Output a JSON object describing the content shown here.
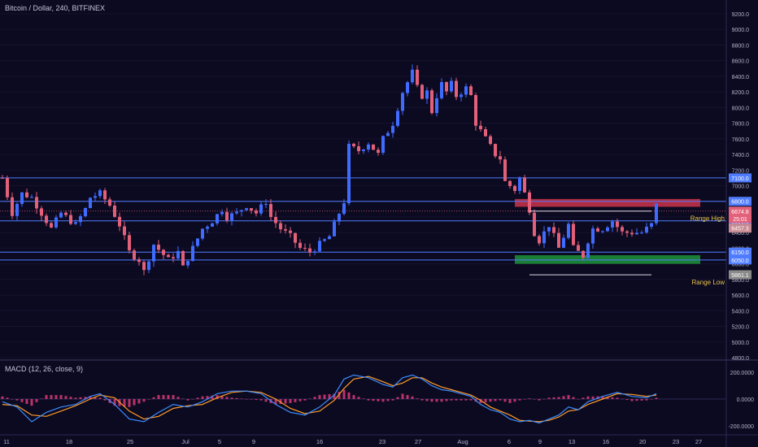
{
  "header": {
    "symbol_title": "Bitcoin / Dollar, 240, BITFINEX",
    "macd_title": "MACD (12, 26, close, 9)"
  },
  "colors": {
    "background": "#0c0a20",
    "bull": "#3f6bff",
    "bear": "#e2607a",
    "level_line": "#4f7cff",
    "supply_zone": "#e53950",
    "demand_zone": "#1fa53b",
    "annotation": "#e8c24a",
    "macd_line": "#3c8cff",
    "signal_line": "#ff9c2a",
    "histogram": "#d83a78"
  },
  "chart_data": [
    {
      "type": "candlestick",
      "ylim": [
        4800,
        9200
      ],
      "y_ticks": [
        "9200.0",
        "9000.0",
        "8800.0",
        "8600.0",
        "8400.0",
        "8200.0",
        "8000.0",
        "7800.0",
        "7600.0",
        "7400.0",
        "7200.0",
        "7000.0",
        "6800.0",
        "6600.0",
        "6400.0",
        "6200.0",
        "6000.0",
        "5800.0",
        "5600.0",
        "5400.0",
        "5200.0",
        "5000.0",
        "4800.0"
      ],
      "x_ticks": [
        "11",
        "18",
        "25",
        "Jul",
        "5",
        "9",
        "16",
        "23",
        "27",
        "Aug",
        "6",
        "9",
        "13",
        "16",
        "20",
        "23",
        "27"
      ],
      "close_path": [
        [
          0,
          7100
        ],
        [
          2,
          6650
        ],
        [
          4,
          6900
        ],
        [
          6,
          6850
        ],
        [
          8,
          6650
        ],
        [
          10,
          6450
        ],
        [
          12,
          6650
        ],
        [
          15,
          6500
        ],
        [
          17,
          6700
        ],
        [
          18,
          6850
        ],
        [
          20,
          6900
        ],
        [
          22,
          6750
        ],
        [
          24,
          6500
        ],
        [
          26,
          6150
        ],
        [
          28,
          6050
        ],
        [
          29,
          5900
        ],
        [
          31,
          6250
        ],
        [
          34,
          6050
        ],
        [
          36,
          6150
        ],
        [
          37,
          5950
        ],
        [
          39,
          6200
        ],
        [
          41,
          6450
        ],
        [
          43,
          6550
        ],
        [
          45,
          6700
        ],
        [
          46,
          6600
        ],
        [
          48,
          6650
        ],
        [
          50,
          6750
        ],
        [
          52,
          6650
        ],
        [
          54,
          6800
        ],
        [
          55,
          6600
        ],
        [
          57,
          6450
        ],
        [
          59,
          6350
        ],
        [
          61,
          6200
        ],
        [
          63,
          6150
        ],
        [
          65,
          6250
        ],
        [
          67,
          6350
        ],
        [
          68,
          6500
        ],
        [
          70,
          6800
        ],
        [
          71,
          7500
        ],
        [
          73,
          7450
        ],
        [
          75,
          7550
        ],
        [
          77,
          7400
        ],
        [
          78,
          7600
        ],
        [
          80,
          7800
        ],
        [
          82,
          8200
        ],
        [
          84,
          8450
        ],
        [
          85,
          8250
        ],
        [
          86,
          8150
        ],
        [
          87,
          8200
        ],
        [
          88,
          7950
        ],
        [
          89,
          8150
        ],
        [
          90,
          8300
        ],
        [
          91,
          8200
        ],
        [
          92,
          8300
        ],
        [
          93,
          8150
        ],
        [
          94,
          8200
        ],
        [
          95,
          8250
        ],
        [
          96,
          8150
        ],
        [
          97,
          7800
        ],
        [
          99,
          7600
        ],
        [
          101,
          7400
        ],
        [
          102,
          7350
        ],
        [
          103,
          7050
        ],
        [
          105,
          6950
        ],
        [
          106,
          7100
        ],
        [
          108,
          6700
        ],
        [
          109,
          6400
        ],
        [
          110,
          6300
        ],
        [
          112,
          6500
        ],
        [
          114,
          6200
        ],
        [
          116,
          6500
        ],
        [
          117,
          6200
        ],
        [
          119,
          6100
        ],
        [
          120,
          6300
        ],
        [
          121,
          6450
        ],
        [
          123,
          6450
        ],
        [
          125,
          6550
        ],
        [
          127,
          6400
        ],
        [
          129,
          6400
        ],
        [
          131,
          6400
        ],
        [
          133,
          6500
        ],
        [
          134,
          6750
        ]
      ],
      "levels": [
        {
          "price": 7100,
          "label": "7100.0"
        },
        {
          "price": 6800,
          "label": "6800.0"
        },
        {
          "price": 6550,
          "label": "6550.0"
        },
        {
          "price": 6150,
          "label": "6150.0"
        },
        {
          "price": 6050,
          "label": "6050.0"
        }
      ],
      "price_tags": [
        {
          "price": 6674.8,
          "label": "6674.8",
          "color": "#e2607a"
        },
        {
          "price": 6580,
          "label": "25:01",
          "color": "#e2607a"
        },
        {
          "price": 6457.3,
          "label": "6457.3",
          "color": "#c88a92"
        },
        {
          "price": 5861.1,
          "label": "5861.1",
          "color": "#8a8a8a"
        }
      ],
      "zones": [
        {
          "name": "supply",
          "from": 6730,
          "to": 6830,
          "x_from": 105,
          "x_to": 143
        },
        {
          "name": "demand",
          "from": 6000,
          "to": 6110,
          "x_from": 105,
          "x_to": 143
        }
      ],
      "annotations": [
        {
          "text": "Range High",
          "price": 6675,
          "x_from": 108,
          "x_to": 133
        },
        {
          "text": "Range Low",
          "price": 5860,
          "x_from": 108,
          "x_to": 133
        }
      ]
    },
    {
      "type": "line",
      "name": "MACD",
      "ylim": [
        -250,
        250
      ],
      "y_ticks": [
        "200.0000",
        "0.0000",
        "-200.0000"
      ],
      "macd_path": [
        [
          0,
          -20
        ],
        [
          3,
          -60
        ],
        [
          6,
          -170
        ],
        [
          9,
          -100
        ],
        [
          12,
          -60
        ],
        [
          15,
          -40
        ],
        [
          18,
          20
        ],
        [
          20,
          40
        ],
        [
          23,
          -40
        ],
        [
          26,
          -150
        ],
        [
          29,
          -170
        ],
        [
          32,
          -100
        ],
        [
          35,
          -40
        ],
        [
          38,
          -60
        ],
        [
          41,
          -20
        ],
        [
          44,
          40
        ],
        [
          47,
          60
        ],
        [
          50,
          60
        ],
        [
          53,
          40
        ],
        [
          56,
          -40
        ],
        [
          59,
          -100
        ],
        [
          62,
          -120
        ],
        [
          65,
          -60
        ],
        [
          68,
          30
        ],
        [
          70,
          150
        ],
        [
          72,
          180
        ],
        [
          75,
          160
        ],
        [
          78,
          110
        ],
        [
          80,
          90
        ],
        [
          82,
          160
        ],
        [
          84,
          180
        ],
        [
          86,
          150
        ],
        [
          88,
          100
        ],
        [
          90,
          70
        ],
        [
          92,
          60
        ],
        [
          94,
          40
        ],
        [
          96,
          20
        ],
        [
          98,
          -40
        ],
        [
          100,
          -80
        ],
        [
          102,
          -100
        ],
        [
          104,
          -150
        ],
        [
          106,
          -170
        ],
        [
          108,
          -160
        ],
        [
          110,
          -180
        ],
        [
          112,
          -150
        ],
        [
          114,
          -120
        ],
        [
          116,
          -60
        ],
        [
          118,
          -80
        ],
        [
          120,
          -20
        ],
        [
          123,
          20
        ],
        [
          126,
          50
        ],
        [
          129,
          20
        ],
        [
          132,
          10
        ],
        [
          134,
          40
        ]
      ],
      "signal_path": [
        [
          0,
          -40
        ],
        [
          3,
          -50
        ],
        [
          6,
          -120
        ],
        [
          9,
          -130
        ],
        [
          12,
          -90
        ],
        [
          15,
          -50
        ],
        [
          18,
          0
        ],
        [
          20,
          30
        ],
        [
          23,
          10
        ],
        [
          26,
          -90
        ],
        [
          29,
          -150
        ],
        [
          32,
          -130
        ],
        [
          35,
          -70
        ],
        [
          38,
          -50
        ],
        [
          41,
          -40
        ],
        [
          44,
          10
        ],
        [
          47,
          50
        ],
        [
          50,
          60
        ],
        [
          53,
          50
        ],
        [
          56,
          0
        ],
        [
          59,
          -70
        ],
        [
          62,
          -110
        ],
        [
          65,
          -90
        ],
        [
          68,
          -10
        ],
        [
          70,
          80
        ],
        [
          72,
          150
        ],
        [
          75,
          170
        ],
        [
          78,
          130
        ],
        [
          80,
          100
        ],
        [
          82,
          120
        ],
        [
          84,
          160
        ],
        [
          86,
          160
        ],
        [
          88,
          120
        ],
        [
          90,
          90
        ],
        [
          92,
          70
        ],
        [
          94,
          50
        ],
        [
          96,
          30
        ],
        [
          98,
          -10
        ],
        [
          100,
          -60
        ],
        [
          102,
          -90
        ],
        [
          104,
          -120
        ],
        [
          106,
          -160
        ],
        [
          108,
          -165
        ],
        [
          110,
          -170
        ],
        [
          112,
          -160
        ],
        [
          114,
          -135
        ],
        [
          116,
          -90
        ],
        [
          118,
          -80
        ],
        [
          120,
          -40
        ],
        [
          123,
          0
        ],
        [
          126,
          40
        ],
        [
          129,
          35
        ],
        [
          132,
          20
        ],
        [
          134,
          30
        ]
      ]
    }
  ]
}
